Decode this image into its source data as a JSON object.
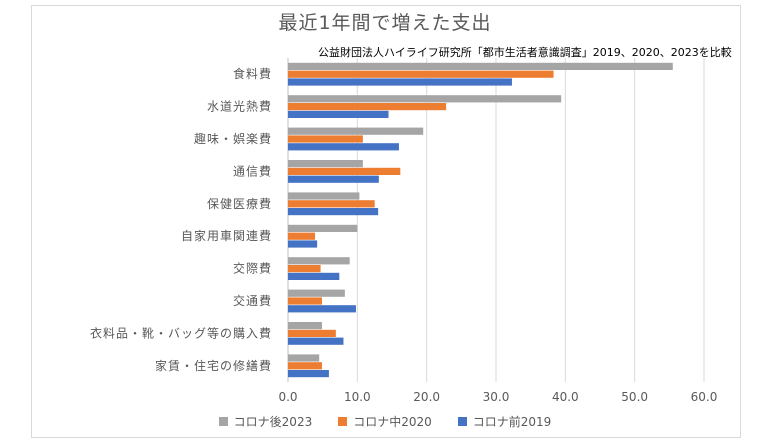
{
  "chart_data": {
    "type": "bar",
    "orientation": "horizontal",
    "title": "最近1年間で増えた支出",
    "subtitle": "公益財団法人ハイライフ研究所「都市生活者意識調査」2019、2020、2023を比較",
    "categories": [
      "食料費",
      "水道光熱費",
      "趣味・娯楽費",
      "通信費",
      "保健医療費",
      "自家用車関連費",
      "交際費",
      "交通費",
      "衣料品・靴・バッグ等の購入費",
      "家賃・住宅の修繕費"
    ],
    "series": [
      {
        "name": "コロナ後2023",
        "color": "#a5a5a5",
        "values": [
          55.5,
          39.4,
          19.5,
          10.8,
          10.3,
          10.0,
          8.9,
          8.2,
          4.9,
          4.5
        ]
      },
      {
        "name": "コロナ中2020",
        "color": "#ed7d31",
        "values": [
          38.3,
          22.8,
          10.8,
          16.2,
          12.5,
          3.9,
          4.7,
          4.9,
          6.9,
          4.9
        ]
      },
      {
        "name": "コロナ前2019",
        "color": "#4472c4",
        "values": [
          32.3,
          14.5,
          16.0,
          13.1,
          13.0,
          4.2,
          7.4,
          9.8,
          8.0,
          5.9
        ]
      }
    ],
    "xlim": [
      0,
      60
    ],
    "xticks": [
      "0.0",
      "10.0",
      "20.0",
      "30.0",
      "40.0",
      "50.0",
      "60.0"
    ],
    "grid": true,
    "legend_position": "bottom"
  }
}
